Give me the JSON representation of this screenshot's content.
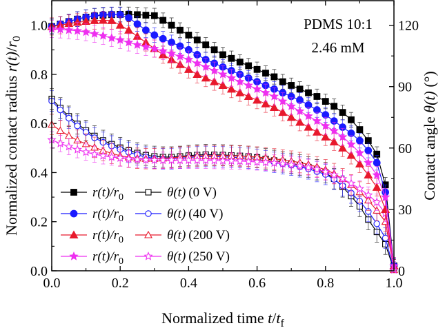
{
  "chart_data": {
    "type": "line",
    "annotation_lines": [
      "PDMS 10:1",
      "2.46 mM"
    ],
    "x": {
      "label_prefix": "Normalized time ",
      "label_var": "t",
      "label_slash": "/",
      "label_denominator": "t",
      "label_denominator_sub": "f",
      "range": [
        0,
        1
      ],
      "ticks": [
        "0.0",
        "0.2",
        "0.4",
        "0.6",
        "0.8",
        "1.0"
      ]
    },
    "y_left": {
      "label_prefix": "Normalized contact radius ",
      "label_numerator": "r(t)",
      "label_slash": "/",
      "label_denominator": "r",
      "label_denominator_sub": "0",
      "range": [
        0,
        1.1
      ],
      "ticks": [
        "0.0",
        "0.2",
        "0.4",
        "0.6",
        "0.8",
        "1.0"
      ]
    },
    "y_right": {
      "label_prefix": "Contact angle ",
      "label_var": "θ(t)",
      "label_suffix": " (°)",
      "range": [
        0,
        132
      ],
      "ticks": [
        "0",
        "30",
        "60",
        "90",
        "120"
      ]
    },
    "legend": {
      "r_label": "r(t)/r",
      "r_label_sub": "0",
      "theta_label": "θ(t)",
      "entries": [
        "(0     V)",
        "(40   V)",
        "(200 V)",
        "(250 V)"
      ]
    },
    "series_colors": [
      "#000000",
      "#1a1aff",
      "#e8192c",
      "#ee2ff0"
    ],
    "x_values": [
      0.0,
      0.025,
      0.05,
      0.075,
      0.1,
      0.125,
      0.15,
      0.175,
      0.2,
      0.225,
      0.25,
      0.275,
      0.3,
      0.325,
      0.35,
      0.375,
      0.4,
      0.425,
      0.45,
      0.475,
      0.5,
      0.525,
      0.55,
      0.575,
      0.6,
      0.625,
      0.65,
      0.675,
      0.7,
      0.725,
      0.75,
      0.775,
      0.8,
      0.825,
      0.85,
      0.875,
      0.9,
      0.925,
      0.95,
      0.975,
      1.0
    ],
    "radius_series": [
      {
        "name": "r(t)/r0 (0 V)",
        "marker": "square",
        "err": 0.03,
        "values": [
          0.995,
          1.005,
          1.015,
          1.025,
          1.033,
          1.038,
          1.041,
          1.043,
          1.044,
          1.044,
          1.043,
          1.041,
          1.039,
          1.02,
          1.0,
          0.98,
          0.96,
          0.94,
          0.92,
          0.9,
          0.88,
          0.865,
          0.85,
          0.835,
          0.82,
          0.805,
          0.79,
          0.77,
          0.755,
          0.74,
          0.725,
          0.71,
          0.69,
          0.67,
          0.645,
          0.615,
          0.575,
          0.53,
          0.475,
          0.35,
          0.02
        ]
      },
      {
        "name": "r(t)/r0 (40 V)",
        "marker": "circle",
        "err": 0.03,
        "values": [
          0.995,
          1.005,
          1.015,
          1.025,
          1.033,
          1.039,
          1.043,
          1.044,
          1.043,
          1.03,
          1.005,
          0.98,
          0.96,
          0.945,
          0.93,
          0.915,
          0.9,
          0.88,
          0.86,
          0.845,
          0.83,
          0.815,
          0.8,
          0.785,
          0.77,
          0.755,
          0.74,
          0.725,
          0.71,
          0.695,
          0.675,
          0.655,
          0.635,
          0.61,
          0.585,
          0.56,
          0.53,
          0.49,
          0.44,
          0.32,
          0.02
        ]
      },
      {
        "name": "r(t)/r0 (200 V)",
        "marker": "triangle",
        "err": 0.035,
        "values": [
          0.995,
          1.0,
          1.007,
          1.012,
          1.016,
          1.019,
          1.02,
          1.019,
          1.0,
          0.98,
          0.955,
          0.93,
          0.905,
          0.88,
          0.86,
          0.84,
          0.82,
          0.8,
          0.785,
          0.77,
          0.755,
          0.74,
          0.725,
          0.71,
          0.695,
          0.68,
          0.665,
          0.645,
          0.625,
          0.605,
          0.585,
          0.565,
          0.545,
          0.525,
          0.5,
          0.47,
          0.435,
          0.39,
          0.34,
          0.25,
          0.02
        ]
      },
      {
        "name": "r(t)/r0 (250 V)",
        "marker": "star",
        "err": 0.035,
        "values": [
          0.985,
          0.983,
          0.98,
          0.977,
          0.972,
          0.965,
          0.957,
          0.948,
          0.94,
          0.93,
          0.92,
          0.912,
          0.905,
          0.895,
          0.885,
          0.873,
          0.86,
          0.845,
          0.83,
          0.815,
          0.8,
          0.785,
          0.77,
          0.755,
          0.74,
          0.725,
          0.71,
          0.69,
          0.67,
          0.65,
          0.63,
          0.61,
          0.59,
          0.57,
          0.545,
          0.515,
          0.48,
          0.44,
          0.39,
          0.3,
          0.02
        ]
      }
    ],
    "angle_series": [
      {
        "name": "θ(t) (0 V)",
        "marker": "square-open",
        "err": 5,
        "values": [
          84.0,
          79.6,
          75.5,
          71.8,
          68.6,
          65.9,
          63.7,
          61.9,
          60.2,
          58.8,
          57.6,
          56.5,
          55.9,
          55.6,
          55.6,
          55.9,
          56.3,
          56.6,
          56.8,
          56.7,
          56.6,
          56.4,
          56.2,
          55.9,
          55.4,
          54.7,
          53.9,
          53.2,
          52.5,
          51.7,
          50.7,
          49.4,
          48.0,
          45.0,
          41.0,
          36.5,
          31.5,
          25.0,
          19.0,
          13.0,
          0.5
        ]
      },
      {
        "name": "θ(t) (40 V)",
        "marker": "circle-open",
        "err": 5,
        "values": [
          83.0,
          78.6,
          74.6,
          70.8,
          67.7,
          65.0,
          62.8,
          61.0,
          59.3,
          57.9,
          56.7,
          55.6,
          55.0,
          54.7,
          54.7,
          55.0,
          55.4,
          55.7,
          55.9,
          55.8,
          55.7,
          55.5,
          55.3,
          55.0,
          54.5,
          53.8,
          53.0,
          52.3,
          51.6,
          50.8,
          49.8,
          48.5,
          47.1,
          44.7,
          41.5,
          38.0,
          34.0,
          29.0,
          23.0,
          16.0,
          0.5
        ]
      },
      {
        "name": "θ(t) (200 V)",
        "marker": "triangle-open",
        "err": 5,
        "values": [
          71.5,
          68.5,
          66.0,
          63.8,
          62.0,
          60.3,
          58.8,
          57.4,
          56.2,
          55.5,
          55.0,
          54.8,
          54.8,
          55.0,
          55.2,
          55.6,
          55.9,
          56.1,
          56.3,
          56.3,
          56.3,
          56.2,
          56.1,
          55.9,
          55.6,
          55.2,
          54.7,
          54.2,
          53.6,
          52.9,
          52.0,
          50.8,
          49.4,
          47.5,
          45.0,
          42.0,
          38.5,
          34.5,
          29.5,
          24.0,
          0.5
        ]
      },
      {
        "name": "θ(t) (250 V)",
        "marker": "star-open",
        "err": 4,
        "values": [
          64.0,
          62.2,
          60.7,
          59.2,
          58.0,
          57.0,
          56.2,
          55.6,
          55.1,
          54.7,
          54.4,
          54.2,
          54.1,
          54.0,
          54.0,
          54.0,
          54.0,
          54.0,
          54.0,
          53.9,
          53.8,
          53.7,
          53.6,
          53.4,
          53.2,
          53.0,
          52.7,
          52.3,
          51.8,
          51.2,
          50.5,
          49.6,
          48.4,
          46.8,
          44.9,
          42.7,
          40.1,
          37.0,
          33.5,
          28.0,
          0.5
        ]
      }
    ]
  }
}
